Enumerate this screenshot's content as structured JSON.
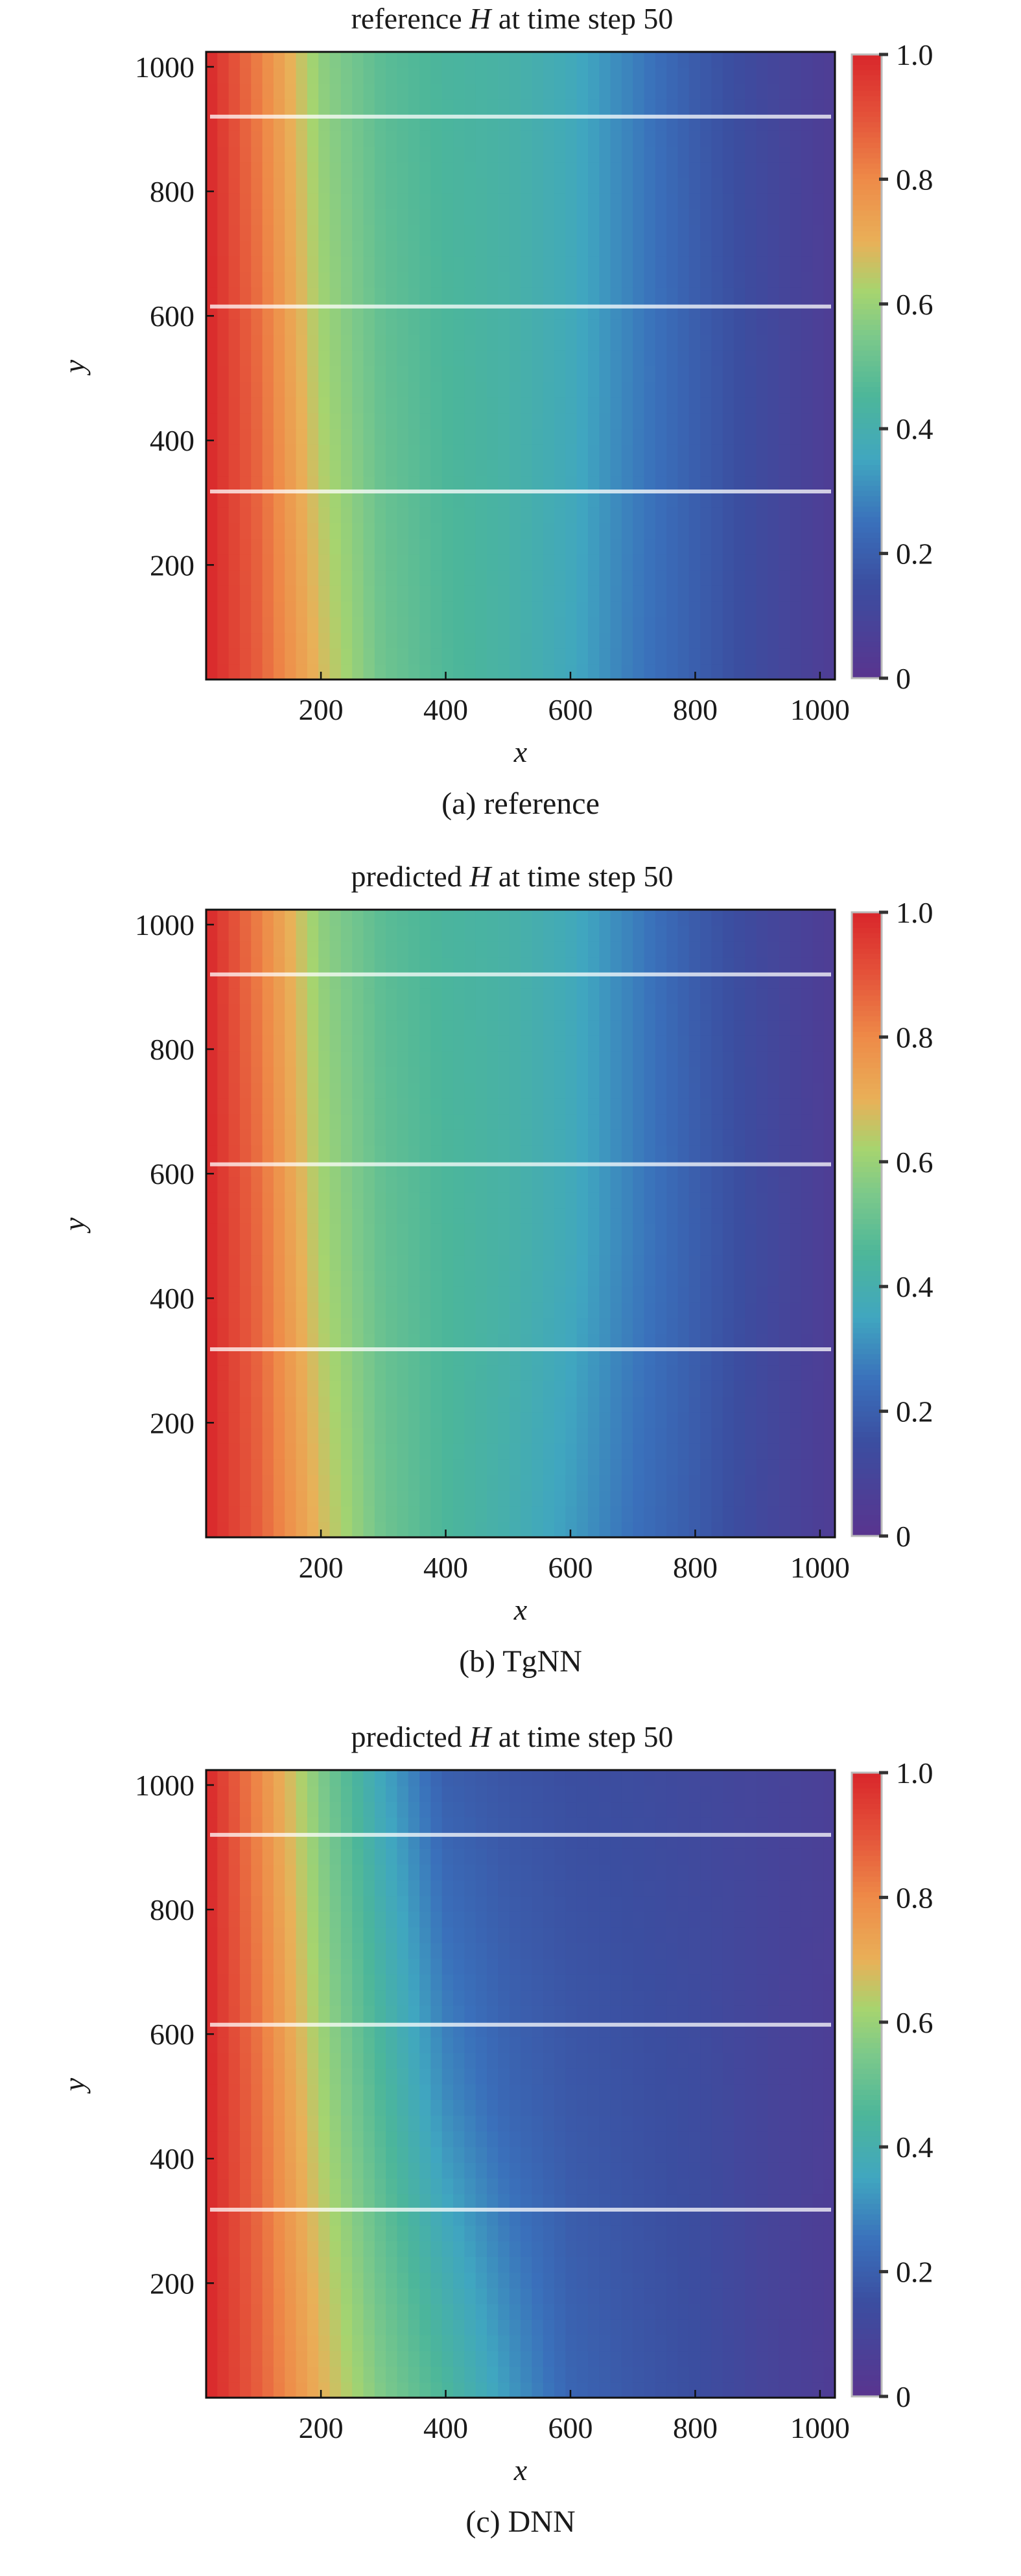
{
  "chart_data": [
    {
      "type": "heatmap",
      "title_prefix": "reference",
      "title_var": "H",
      "title_suffix": "at time step 50",
      "caption": "(a) reference",
      "xlabel": "x",
      "ylabel": "y",
      "xlim": [
        16,
        1024
      ],
      "ylim": [
        16,
        1024
      ],
      "xticks": [
        200,
        400,
        600,
        800,
        1000
      ],
      "yticks": [
        200,
        400,
        600,
        800,
        1000
      ],
      "colorbar": {
        "range": [
          0,
          1
        ],
        "ticks": [
          "0",
          "0.2",
          "0.4",
          "0.6",
          "0.8",
          "1.0"
        ]
      },
      "grid_x": [
        16,
        100,
        200,
        300,
        400,
        500,
        600,
        700,
        800,
        900,
        1024
      ],
      "grid_y": [
        16,
        500,
        1024
      ],
      "values": [
        [
          1.0,
          0.88,
          0.68,
          0.52,
          0.46,
          0.42,
          0.36,
          0.27,
          0.2,
          0.13,
          0.05
        ],
        [
          1.0,
          0.86,
          0.62,
          0.5,
          0.45,
          0.42,
          0.37,
          0.28,
          0.2,
          0.13,
          0.05
        ],
        [
          1.0,
          0.82,
          0.58,
          0.48,
          0.44,
          0.42,
          0.37,
          0.28,
          0.19,
          0.12,
          0.05
        ]
      ],
      "observation_lines_y": [
        318,
        615,
        920
      ]
    },
    {
      "type": "heatmap",
      "title_prefix": "predicted",
      "title_var": "H",
      "title_suffix": "at time step 50",
      "caption": "(b) TgNN",
      "xlabel": "x",
      "ylabel": "y",
      "xlim": [
        16,
        1024
      ],
      "ylim": [
        16,
        1024
      ],
      "xticks": [
        200,
        400,
        600,
        800,
        1000
      ],
      "yticks": [
        200,
        400,
        600,
        800,
        1000
      ],
      "colorbar": {
        "range": [
          0,
          1
        ],
        "ticks": [
          "0",
          "0.2",
          "0.4",
          "0.6",
          "0.8",
          "1.0"
        ]
      },
      "grid_x": [
        16,
        100,
        200,
        300,
        400,
        500,
        600,
        700,
        800,
        900,
        1024
      ],
      "grid_y": [
        16,
        500,
        1024
      ],
      "values": [
        [
          1.0,
          0.88,
          0.68,
          0.52,
          0.45,
          0.4,
          0.33,
          0.25,
          0.19,
          0.12,
          0.05
        ],
        [
          1.0,
          0.86,
          0.62,
          0.5,
          0.45,
          0.42,
          0.37,
          0.28,
          0.2,
          0.13,
          0.05
        ],
        [
          1.0,
          0.82,
          0.58,
          0.48,
          0.44,
          0.42,
          0.37,
          0.28,
          0.19,
          0.12,
          0.05
        ]
      ],
      "observation_lines_y": [
        318,
        615,
        920
      ]
    },
    {
      "type": "heatmap",
      "title_prefix": "predicted",
      "title_var": "H",
      "title_suffix": "at time step 50",
      "caption": "(c) DNN",
      "xlabel": "x",
      "ylabel": "y",
      "xlim": [
        16,
        1024
      ],
      "ylim": [
        16,
        1024
      ],
      "xticks": [
        200,
        400,
        600,
        800,
        1000
      ],
      "yticks": [
        200,
        400,
        600,
        800,
        1000
      ],
      "colorbar": {
        "range": [
          0,
          1
        ],
        "ticks": [
          "0",
          "0.2",
          "0.4",
          "0.6",
          "0.8",
          "1.0"
        ]
      },
      "grid_x": [
        16,
        100,
        200,
        300,
        400,
        500,
        600,
        700,
        800,
        900,
        1024
      ],
      "grid_y": [
        16,
        500,
        1024
      ],
      "values": [
        [
          1.0,
          0.88,
          0.7,
          0.55,
          0.45,
          0.33,
          0.22,
          0.18,
          0.15,
          0.1,
          0.05
        ],
        [
          1.0,
          0.85,
          0.62,
          0.45,
          0.3,
          0.22,
          0.18,
          0.16,
          0.14,
          0.1,
          0.06
        ],
        [
          1.0,
          0.8,
          0.55,
          0.35,
          0.2,
          0.17,
          0.15,
          0.14,
          0.12,
          0.1,
          0.07
        ]
      ],
      "observation_lines_y": [
        318,
        615,
        920
      ]
    }
  ],
  "colormap": [
    "#59348f",
    "#3b4ea0",
    "#3a70bb",
    "#40a6c0",
    "#4cb69a",
    "#7dc98a",
    "#a6d46f",
    "#e9b058",
    "#ee8a48",
    "#e4533a",
    "#d8262b"
  ],
  "colormap_positions": [
    0,
    0.15,
    0.25,
    0.35,
    0.45,
    0.55,
    0.62,
    0.7,
    0.8,
    0.9,
    1.0
  ]
}
